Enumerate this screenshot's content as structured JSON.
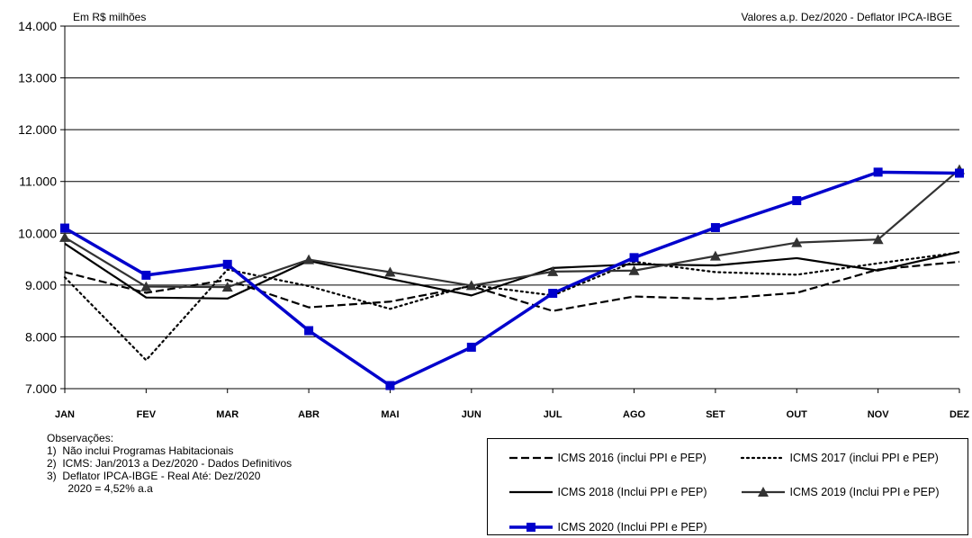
{
  "header": {
    "unit_label": "Em R$ milhões",
    "deflator_label": "Valores a.p. Dez/2020 - Deflator IPCA-IBGE"
  },
  "notes": {
    "title": "Observações:",
    "items": [
      "1)  Não inclui Programas Habitacionais",
      "2)  ICMS: Jan/2013 a Dez/2020 - Dados Definitivos",
      "3)  Deflator IPCA-IBGE - Real Até: Dez/2020",
      "       2020 = 4,52% a.a"
    ]
  },
  "chart_data": {
    "type": "line",
    "categories": [
      "JAN",
      "FEV",
      "MAR",
      "ABR",
      "MAI",
      "JUN",
      "JUL",
      "AGO",
      "SET",
      "OUT",
      "NOV",
      "DEZ"
    ],
    "ylim": [
      7000,
      14000
    ],
    "yticks": [
      {
        "value": 7000,
        "label": "7.000"
      },
      {
        "value": 8000,
        "label": "8.000"
      },
      {
        "value": 9000,
        "label": "9.000"
      },
      {
        "value": 10000,
        "label": "10.000"
      },
      {
        "value": 11000,
        "label": "11.000"
      },
      {
        "value": 12000,
        "label": "12.000"
      },
      {
        "value": 13000,
        "label": "13.000"
      },
      {
        "value": 14000,
        "label": "14.000"
      }
    ],
    "grid": true,
    "legend_position": "bottom-right",
    "series": [
      {
        "name": "ICMS 2016 (inclui PPI e PEP)",
        "style": "dashed",
        "color": "#000000",
        "marker": "none",
        "values": [
          9250,
          8850,
          9100,
          8570,
          8680,
          8980,
          8500,
          8780,
          8730,
          8850,
          9300,
          9450
        ]
      },
      {
        "name": "ICMS 2017 (inclui PPI e PEP)",
        "style": "dotted",
        "color": "#000000",
        "marker": "none",
        "values": [
          9150,
          7550,
          9300,
          8980,
          8540,
          9000,
          8800,
          9450,
          9250,
          9200,
          9420,
          9630
        ]
      },
      {
        "name": "ICMS 2018 (Inclui PPI e PEP)",
        "style": "solid",
        "color": "#000000",
        "marker": "none",
        "values": [
          9800,
          8760,
          8740,
          9470,
          9120,
          8800,
          9330,
          9400,
          9380,
          9520,
          9280,
          9640
        ]
      },
      {
        "name": "ICMS 2019 (Inclui PPI e PEP)",
        "style": "solid",
        "color": "#333333",
        "marker": "triangle",
        "values": [
          9920,
          8970,
          8960,
          9490,
          9250,
          8990,
          9260,
          9280,
          9560,
          9820,
          9880,
          11230
        ]
      },
      {
        "name": "ICMS 2020 (Inclui PPI e PEP)",
        "style": "solid",
        "color": "#0000cc",
        "marker": "square",
        "values": [
          10100,
          9190,
          9400,
          8120,
          7060,
          7800,
          8840,
          9530,
          10110,
          10630,
          11180,
          11160
        ]
      }
    ]
  }
}
